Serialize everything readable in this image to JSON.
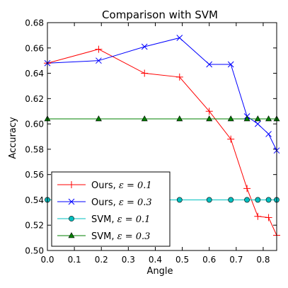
{
  "chart_data": {
    "type": "line",
    "title": "Comparison with SVM",
    "xlabel": "Angle",
    "ylabel": "Accuracy",
    "xlim": [
      0.0,
      0.85
    ],
    "ylim": [
      0.5,
      0.68
    ],
    "xticks": [
      "0.0",
      "0.1",
      "0.2",
      "0.3",
      "0.4",
      "0.5",
      "0.6",
      "0.7",
      "0.8"
    ],
    "yticks": [
      "0.50",
      "0.52",
      "0.54",
      "0.56",
      "0.58",
      "0.60",
      "0.62",
      "0.64",
      "0.66",
      "0.68"
    ],
    "grid": false,
    "legend_position": "lower-left",
    "series": [
      {
        "name_prefix": "Ours, ",
        "name_math": "ε = 0.1",
        "color": "#ff0000",
        "marker": "plus",
        "x": [
          0.0,
          0.19,
          0.36,
          0.49,
          0.6,
          0.68,
          0.74,
          0.78,
          0.82,
          0.85
        ],
        "y": [
          0.648,
          0.659,
          0.64,
          0.637,
          0.61,
          0.588,
          0.549,
          0.527,
          0.526,
          0.512
        ]
      },
      {
        "name_prefix": "Ours, ",
        "name_math": "ε = 0.3",
        "color": "#0000ff",
        "marker": "x",
        "x": [
          0.0,
          0.19,
          0.36,
          0.49,
          0.6,
          0.68,
          0.74,
          0.78,
          0.82,
          0.85
        ],
        "y": [
          0.648,
          0.65,
          0.661,
          0.668,
          0.647,
          0.647,
          0.606,
          0.6,
          0.592,
          0.579
        ]
      },
      {
        "name_prefix": "SVM, ",
        "name_math": "ε = 0.1",
        "color": "#00bfbf",
        "marker": "circle",
        "x": [
          0.0,
          0.19,
          0.36,
          0.49,
          0.6,
          0.68,
          0.74,
          0.78,
          0.82,
          0.85
        ],
        "y": [
          0.54,
          0.54,
          0.54,
          0.54,
          0.54,
          0.54,
          0.54,
          0.54,
          0.54,
          0.54
        ]
      },
      {
        "name_prefix": "SVM, ",
        "name_math": "ε = 0.3",
        "color": "#008000",
        "marker": "triangle",
        "x": [
          0.0,
          0.19,
          0.36,
          0.49,
          0.6,
          0.68,
          0.74,
          0.78,
          0.82,
          0.85
        ],
        "y": [
          0.604,
          0.604,
          0.604,
          0.604,
          0.604,
          0.604,
          0.604,
          0.604,
          0.604,
          0.604
        ]
      }
    ]
  }
}
